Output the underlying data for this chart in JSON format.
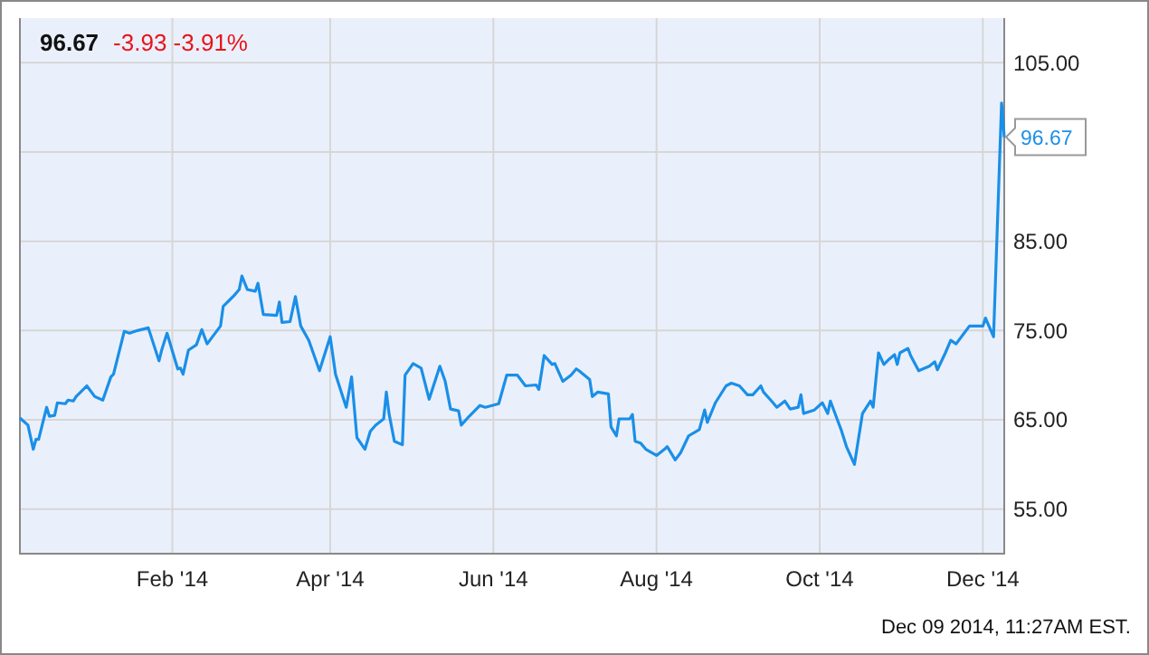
{
  "chart_data": {
    "type": "line",
    "title": "96.67",
    "subtitle": "-3.93  -3.91%",
    "xlim": [
      "2013-12-06",
      "2014-12-09"
    ],
    "xticks": [
      {
        "value": "2014-02-01",
        "label": "Feb '14"
      },
      {
        "value": "2014-04-01",
        "label": "Apr '14"
      },
      {
        "value": "2014-06-01",
        "label": "Jun '14"
      },
      {
        "value": "2014-08-01",
        "label": "Aug '14"
      },
      {
        "value": "2014-10-01",
        "label": "Oct '14"
      },
      {
        "value": "2014-12-01",
        "label": "Dec '14"
      }
    ],
    "ylim": [
      50,
      110
    ],
    "yticks": [
      {
        "value": 55,
        "label": "55.00"
      },
      {
        "value": 65,
        "label": "65.00"
      },
      {
        "value": 75,
        "label": "75.00"
      },
      {
        "value": 85,
        "label": "85.00"
      },
      {
        "value": 95,
        "label": null
      },
      {
        "value": 105,
        "label": "105.00"
      }
    ],
    "grid": true,
    "marker": "none",
    "line_style": "solid",
    "x": [
      "2013-12-06",
      "2013-12-09",
      "2013-12-11",
      "2013-12-12",
      "2013-12-13",
      "2013-12-16",
      "2013-12-17",
      "2013-12-19",
      "2013-12-20",
      "2013-12-23",
      "2013-12-24",
      "2013-12-26",
      "2013-12-27",
      "2013-12-31",
      "2014-01-03",
      "2014-01-06",
      "2014-01-09",
      "2014-01-10",
      "2014-01-14",
      "2014-01-16",
      "2014-01-19",
      "2014-01-23",
      "2014-01-27",
      "2014-01-28",
      "2014-01-30",
      "2014-02-03",
      "2014-02-04",
      "2014-02-05",
      "2014-02-07",
      "2014-02-10",
      "2014-02-12",
      "2014-02-14",
      "2014-02-19",
      "2014-02-20",
      "2014-02-24",
      "2014-02-26",
      "2014-02-27",
      "2014-03-01",
      "2014-03-04",
      "2014-03-05",
      "2014-03-07",
      "2014-03-12",
      "2014-03-13",
      "2014-03-14",
      "2014-03-17",
      "2014-03-19",
      "2014-03-21",
      "2014-03-24",
      "2014-03-26",
      "2014-03-28",
      "2014-04-01",
      "2014-04-03",
      "2014-04-07",
      "2014-04-09",
      "2014-04-11",
      "2014-04-14",
      "2014-04-16",
      "2014-04-18",
      "2014-04-21",
      "2014-04-22",
      "2014-04-23",
      "2014-04-25",
      "2014-04-28",
      "2014-04-29",
      "2014-05-02",
      "2014-05-05",
      "2014-05-08",
      "2014-05-12",
      "2014-05-14",
      "2014-05-16",
      "2014-05-19",
      "2014-05-20",
      "2014-05-23",
      "2014-05-27",
      "2014-05-29",
      "2014-06-03",
      "2014-06-06",
      "2014-06-10",
      "2014-06-13",
      "2014-06-17",
      "2014-06-18",
      "2014-06-20",
      "2014-06-23",
      "2014-06-24",
      "2014-06-27",
      "2014-06-30",
      "2014-07-02",
      "2014-07-03",
      "2014-07-07",
      "2014-07-08",
      "2014-07-10",
      "2014-07-14",
      "2014-07-15",
      "2014-07-17",
      "2014-07-18",
      "2014-07-22",
      "2014-07-23",
      "2014-07-24",
      "2014-07-26",
      "2014-07-28",
      "2014-08-01",
      "2014-08-04",
      "2014-08-05",
      "2014-08-08",
      "2014-08-10",
      "2014-08-13",
      "2014-08-17",
      "2014-08-19",
      "2014-08-20",
      "2014-08-23",
      "2014-08-27",
      "2014-08-29",
      "2014-09-01",
      "2014-09-04",
      "2014-09-06",
      "2014-09-09",
      "2014-09-10",
      "2014-09-13",
      "2014-09-15",
      "2014-09-18",
      "2014-09-20",
      "2014-09-23",
      "2014-09-24",
      "2014-09-25",
      "2014-09-29",
      "2014-10-02",
      "2014-10-04",
      "2014-10-05",
      "2014-10-08",
      "2014-10-09",
      "2014-10-11",
      "2014-10-14",
      "2014-10-17",
      "2014-10-20",
      "2014-10-21",
      "2014-10-23",
      "2014-10-25",
      "2014-10-27",
      "2014-10-29",
      "2014-10-30",
      "2014-10-31",
      "2014-11-03",
      "2014-11-04",
      "2014-11-07",
      "2014-11-11",
      "2014-11-13",
      "2014-11-14",
      "2014-11-17",
      "2014-11-19",
      "2014-11-21",
      "2014-11-24",
      "2014-11-26",
      "2014-12-01",
      "2014-12-02",
      "2014-12-05",
      "2014-12-08",
      "2014-12-09"
    ],
    "series": [
      {
        "color": "#1a8fe8",
        "values": [
          65.2,
          64.4,
          61.7,
          62.8,
          62.8,
          66.4,
          65.4,
          65.5,
          66.9,
          66.8,
          67.2,
          67.1,
          67.6,
          68.8,
          67.6,
          67.2,
          69.8,
          70.1,
          74.9,
          74.7,
          75.0,
          75.3,
          71.6,
          72.8,
          74.7,
          70.7,
          70.8,
          70.1,
          72.8,
          73.4,
          75.1,
          73.5,
          75.5,
          77.7,
          78.9,
          79.6,
          81.1,
          79.6,
          79.4,
          80.3,
          76.8,
          76.7,
          78.2,
          75.9,
          76.0,
          78.8,
          75.5,
          73.9,
          72.2,
          70.5,
          74.3,
          70.1,
          66.4,
          69.8,
          63.0,
          61.7,
          63.7,
          64.4,
          65.1,
          68.1,
          65.7,
          62.6,
          62.2,
          70.0,
          71.3,
          70.8,
          67.3,
          71.0,
          69.3,
          66.2,
          66.0,
          64.4,
          65.4,
          66.6,
          66.4,
          66.8,
          70.0,
          70.0,
          68.8,
          68.9,
          68.4,
          72.2,
          71.2,
          71.3,
          69.3,
          70.0,
          70.7,
          70.5,
          69.5,
          67.6,
          68.1,
          67.9,
          64.2,
          63.2,
          65.1,
          65.1,
          65.6,
          62.6,
          62.4,
          61.7,
          61.0,
          61.7,
          62.0,
          60.5,
          61.3,
          63.2,
          63.9,
          66.1,
          64.7,
          66.9,
          68.8,
          69.1,
          68.8,
          67.8,
          67.8,
          68.8,
          68.1,
          67.1,
          66.4,
          67.1,
          66.2,
          66.4,
          67.8,
          65.7,
          66.1,
          66.9,
          65.7,
          67.1,
          64.7,
          63.9,
          62.0,
          60.0,
          65.7,
          67.1,
          66.4,
          72.5,
          71.2,
          71.8,
          72.3,
          71.2,
          72.5,
          73.0,
          72.2,
          70.5,
          71.0,
          71.5,
          70.6,
          72.5,
          73.9,
          73.5,
          74.7,
          75.5,
          75.5,
          76.4,
          74.3,
          100.5,
          96.67
        ]
      }
    ],
    "annotations": [
      {
        "text": "96.67",
        "x": "2014-12-09",
        "y": 96.67
      },
      "Dec 09 2014, 11:27AM EST."
    ]
  }
}
